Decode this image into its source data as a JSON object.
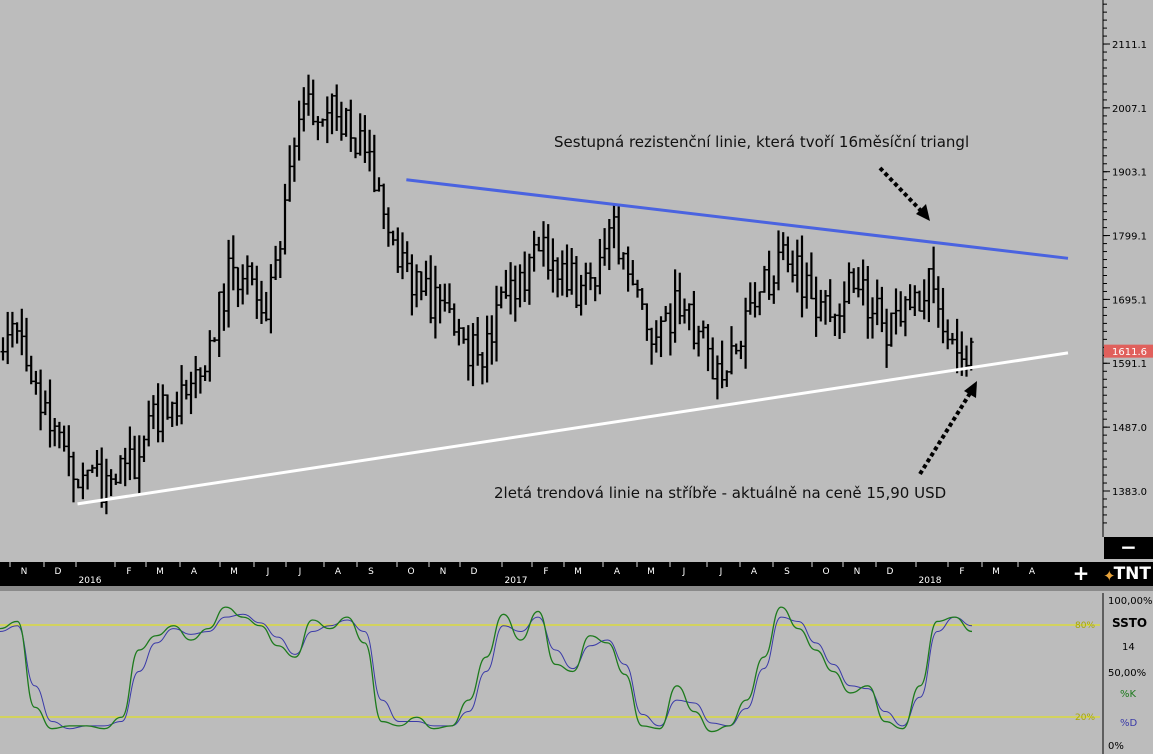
{
  "annotations": {
    "resistance": "Sestupná rezistenční linie, která tvoří 16měsíční triangl",
    "support": "2letá trendová linie na stříbře - aktuálně na ceně 15,90 USD"
  },
  "price_axis": {
    "ticks": [
      "2111.1",
      "2007.1",
      "1903.1",
      "1799.1",
      "1695.1",
      "1591.1",
      "1487.0",
      "1383.0"
    ],
    "current_price": "1611.6",
    "current_price_color": "#e0605c"
  },
  "time_axis": {
    "months": [
      "N",
      "D",
      "2016",
      "F",
      "M",
      "A",
      "M",
      "J",
      "J",
      "A",
      "S",
      "O",
      "N",
      "D",
      "2017",
      "F",
      "M",
      "A",
      "M",
      "J",
      "J",
      "A",
      "S",
      "O",
      "N",
      "D",
      "2018",
      "F",
      "M",
      "A"
    ]
  },
  "indicator": {
    "name": "SSTO",
    "period": "14",
    "k_label": "%K",
    "d_label": "%D",
    "levels": [
      "100,00%",
      "80%",
      "50,00%",
      "20%",
      "0%"
    ],
    "k_color": "#1d7a1d",
    "d_color": "#3a3aa8",
    "level_line_color": "#e8e800"
  },
  "controls": {
    "plus": "+",
    "minus": "−",
    "logo": "TNT",
    "logo_icon": "sparks-icon"
  },
  "trendlines": {
    "resistance_color": "#4a63e0",
    "support_color": "#ffffff"
  },
  "chart_data": [
    {
      "type": "ohlc",
      "instrument": "silver",
      "y_axis_ticks": [
        2111.1,
        2007.1,
        1903.1,
        1799.1,
        1695.1,
        1591.1,
        1487.0,
        1383.0
      ],
      "last_price": 1611.6,
      "close_path": [
        [
          "2015-11",
          1635
        ],
        [
          "2015-12",
          1445
        ],
        [
          "2016-01",
          1390
        ],
        [
          "2016-02",
          1420
        ],
        [
          "2016-03",
          1520
        ],
        [
          "2016-04",
          1560
        ],
        [
          "2016-05",
          1760
        ],
        [
          "2016-06",
          1670
        ],
        [
          "2016-07",
          2000
        ],
        [
          "2016-08",
          2010
        ],
        [
          "2016-09",
          1910
        ],
        [
          "2016-10",
          1740
        ],
        [
          "2016-11",
          1680
        ],
        [
          "2016-12",
          1600
        ],
        [
          "2017-01",
          1700
        ],
        [
          "2017-02",
          1780
        ],
        [
          "2017-03",
          1700
        ],
        [
          "2017-04",
          1810
        ],
        [
          "2017-05",
          1640
        ],
        [
          "2017-06",
          1690
        ],
        [
          "2017-07",
          1560
        ],
        [
          "2017-08",
          1700
        ],
        [
          "2017-09",
          1760
        ],
        [
          "2017-10",
          1680
        ],
        [
          "2017-11",
          1720
        ],
        [
          "2017-12",
          1640
        ],
        [
          "2018-01",
          1720
        ],
        [
          "2018-02",
          1611.6
        ]
      ],
      "trendlines": [
        {
          "name": "resistance",
          "from": [
            "2016-10",
            1890
          ],
          "to": [
            "2018-04",
            1762
          ]
        },
        {
          "name": "support",
          "from": [
            "2016-01",
            1362
          ],
          "to": [
            "2018-04",
            1608
          ]
        }
      ]
    },
    {
      "type": "line",
      "name": "SSTO",
      "ylim": [
        0,
        100
      ],
      "levels": [
        20,
        80
      ],
      "series": [
        {
          "name": "%K",
          "values": [
            80,
            85,
            25,
            10,
            12,
            12,
            10,
            18,
            65,
            75,
            82,
            72,
            80,
            95,
            88,
            82,
            68,
            60,
            86,
            80,
            88,
            70,
            15,
            12,
            18,
            10,
            12,
            30,
            60,
            90,
            72,
            92,
            55,
            50,
            75,
            70,
            48,
            12,
            10,
            40,
            22,
            8,
            12,
            30,
            60,
            95,
            80,
            65,
            50,
            35,
            40,
            15,
            10,
            40,
            85,
            88,
            78
          ]
        },
        {
          "name": "%D",
          "values": [
            78,
            82,
            40,
            15,
            10,
            12,
            12,
            15,
            50,
            70,
            80,
            76,
            78,
            88,
            90,
            84,
            74,
            62,
            78,
            82,
            86,
            78,
            30,
            15,
            15,
            12,
            12,
            22,
            50,
            82,
            78,
            88,
            65,
            52,
            68,
            72,
            55,
            20,
            12,
            30,
            28,
            14,
            12,
            24,
            52,
            88,
            85,
            70,
            55,
            40,
            38,
            22,
            12,
            32,
            78,
            88,
            82
          ]
        }
      ]
    }
  ]
}
